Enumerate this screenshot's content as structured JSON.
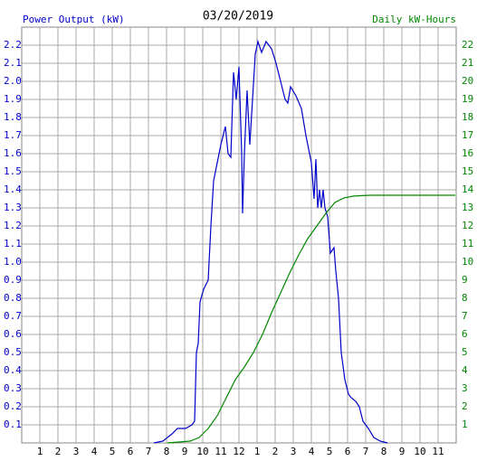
{
  "chart_data": {
    "type": "line",
    "title": "03/20/2019",
    "ylabel": "Power Output (kW)",
    "y2label": "Daily kW-Hours",
    "xlim": [
      0,
      24
    ],
    "ylim": [
      0,
      2.3
    ],
    "y2lim": [
      0,
      23
    ],
    "grid": true,
    "xticks": [
      1,
      2,
      3,
      4,
      5,
      6,
      7,
      8,
      9,
      10,
      11,
      12,
      {
        "value": 13,
        "label": "1"
      },
      {
        "value": 14,
        "label": "2"
      },
      {
        "value": 15,
        "label": "3"
      },
      {
        "value": 16,
        "label": "4"
      },
      {
        "value": 17,
        "label": "5"
      },
      {
        "value": 18,
        "label": "6"
      },
      {
        "value": 19,
        "label": "7"
      },
      {
        "value": 20,
        "label": "8"
      },
      {
        "value": 21,
        "label": "9"
      },
      {
        "value": 22,
        "label": "10"
      },
      {
        "value": 23,
        "label": "11"
      }
    ],
    "yticks": [
      0.1,
      0.2,
      0.3,
      0.4,
      0.5,
      0.6,
      0.7,
      0.8,
      0.9,
      {
        "value": 1,
        "label": "1.0"
      },
      1.1,
      1.2,
      1.3,
      1.4,
      1.5,
      1.6,
      1.7,
      1.8,
      1.9,
      {
        "value": 2,
        "label": "2.0"
      },
      2.1,
      2.2
    ],
    "y2ticks": [
      1,
      2,
      3,
      4,
      5,
      6,
      7,
      8,
      9,
      10,
      11,
      12,
      13,
      14,
      15,
      16,
      17,
      18,
      19,
      20,
      21,
      22
    ],
    "series": [
      {
        "color": "#0000cc",
        "x": [
          7.3,
          7.8,
          8.3,
          8.6,
          9.05,
          9.4,
          9.55,
          9.65,
          9.75,
          9.85,
          10.05,
          10.3,
          10.45,
          10.6,
          10.8,
          11.0,
          11.25,
          11.4,
          11.55,
          11.7,
          11.85,
          12.0,
          12.15,
          12.2,
          12.3,
          12.45,
          12.6,
          12.75,
          12.9,
          13.05,
          13.25,
          13.5,
          13.8,
          14.05,
          14.3,
          14.55,
          14.7,
          14.85,
          15.15,
          15.45,
          15.7,
          16.0,
          16.15,
          16.25,
          16.35,
          16.45,
          16.55,
          16.65,
          16.75,
          16.9,
          17.05,
          17.25,
          17.35,
          17.5,
          17.65,
          17.85,
          18.05,
          18.2,
          18.45,
          18.65,
          18.85,
          19.15,
          19.45,
          19.8,
          20.2
        ],
        "values": [
          0,
          0.01,
          0.05,
          0.08,
          0.08,
          0.1,
          0.12,
          0.5,
          0.55,
          0.78,
          0.85,
          0.9,
          1.2,
          1.45,
          1.55,
          1.65,
          1.75,
          1.6,
          1.58,
          2.05,
          1.9,
          2.08,
          1.6,
          1.27,
          1.6,
          1.95,
          1.65,
          1.9,
          2.15,
          2.22,
          2.16,
          2.22,
          2.18,
          2.1,
          2.0,
          1.9,
          1.88,
          1.97,
          1.92,
          1.85,
          1.7,
          1.55,
          1.35,
          1.57,
          1.3,
          1.4,
          1.3,
          1.4,
          1.3,
          1.25,
          1.05,
          1.08,
          0.95,
          0.8,
          0.5,
          0.35,
          0.27,
          0.25,
          0.23,
          0.2,
          0.12,
          0.08,
          0.03,
          0.01,
          0
        ]
      },
      {
        "color": "#008800",
        "axis": "y2",
        "x": [
          8.05,
          9.3,
          9.8,
          10.3,
          10.8,
          11.3,
          11.8,
          12.3,
          12.8,
          13.3,
          13.8,
          14.3,
          14.8,
          15.3,
          15.8,
          16.3,
          16.8,
          17.3,
          17.8,
          18.3,
          18.8,
          19.3,
          23.95
        ],
        "values": [
          0,
          0.1,
          0.3,
          0.8,
          1.5,
          2.5,
          3.5,
          4.2,
          5.0,
          6.0,
          7.2,
          8.3,
          9.4,
          10.4,
          11.3,
          12.0,
          12.7,
          13.3,
          13.55,
          13.65,
          13.68,
          13.7,
          13.7
        ]
      }
    ]
  }
}
